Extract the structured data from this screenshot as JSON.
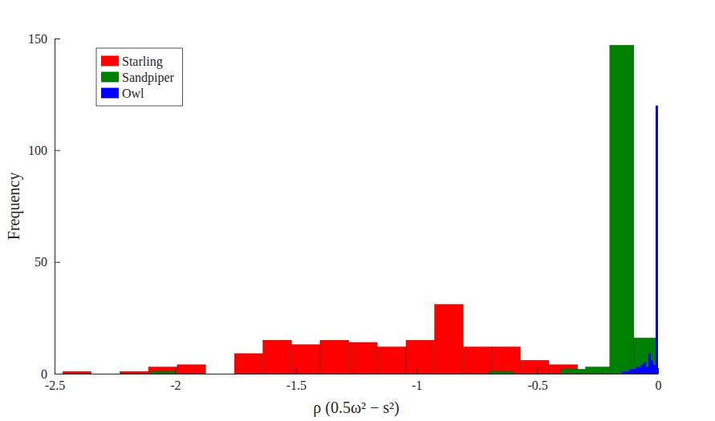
{
  "chart_data": {
    "type": "histogram",
    "xlabel": "ρ (0.5ω² − s²)",
    "ylabel": "Frequency",
    "xlim": [
      -2.5,
      0
    ],
    "ylim": [
      0,
      150
    ],
    "xticks": [
      -2.5,
      -2,
      -1.5,
      -1,
      -0.5,
      0
    ],
    "yticks": [
      0,
      50,
      100,
      150
    ],
    "grid": false,
    "legend": "upper left",
    "series": [
      {
        "name": "Starling",
        "color": "#ff0000",
        "bins": [
          -2.466,
          -2.348,
          -2.229,
          -2.111,
          -1.992,
          -1.874,
          -1.755,
          -1.637,
          -1.518,
          -1.4,
          -1.281,
          -1.163,
          -1.044,
          -0.926,
          -0.807,
          -0.689,
          -0.57,
          -0.452,
          -0.333
        ],
        "values": [
          1,
          0,
          1,
          3,
          4,
          0,
          9,
          15,
          13,
          15,
          14,
          12,
          15,
          31,
          12,
          12,
          6,
          4
        ]
      },
      {
        "name": "Sandpiper",
        "color": "#008000",
        "bins": [
          -2.2,
          -2.1,
          -2.0,
          -1.9,
          -1.8,
          -1.7,
          -1.6,
          -1.5,
          -1.4,
          -1.3,
          -1.2,
          -1.1,
          -1.0,
          -0.9,
          -0.8,
          -0.7,
          -0.6,
          -0.5,
          -0.4,
          -0.3,
          -0.2,
          -0.1,
          0
        ],
        "values": [
          0,
          1,
          0,
          0,
          0,
          0,
          0,
          0,
          0,
          0,
          0,
          0,
          0,
          0,
          0,
          1,
          0,
          0,
          2,
          3,
          147,
          16
        ]
      },
      {
        "name": "Owl",
        "color": "#0000ff",
        "bins": [
          -0.15,
          -0.14,
          -0.13,
          -0.12,
          -0.11,
          -0.1,
          -0.09,
          -0.08,
          -0.07,
          -0.06,
          -0.05,
          -0.04,
          -0.03,
          -0.02,
          -0.01,
          0
        ],
        "values": [
          1,
          1,
          1,
          2,
          2,
          2,
          3,
          3,
          4,
          5,
          3,
          9,
          6,
          4,
          120
        ]
      }
    ]
  }
}
